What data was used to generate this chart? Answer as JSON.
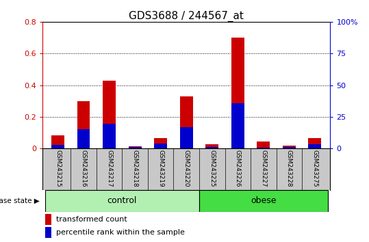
{
  "title": "GDS3688 / 244567_at",
  "samples": [
    "GSM243215",
    "GSM243216",
    "GSM243217",
    "GSM243218",
    "GSM243219",
    "GSM243220",
    "GSM243225",
    "GSM243226",
    "GSM243227",
    "GSM243228",
    "GSM243275"
  ],
  "transformed_count": [
    0.085,
    0.3,
    0.43,
    0.015,
    0.065,
    0.33,
    0.025,
    0.7,
    0.045,
    0.02,
    0.065
  ],
  "percentile_rank_scaled": [
    0.022,
    0.12,
    0.155,
    0.008,
    0.03,
    0.135,
    0.01,
    0.285,
    0.005,
    0.01,
    0.025
  ],
  "groups": [
    {
      "label": "control",
      "start": 0,
      "end": 6,
      "color": "#b2f0b2"
    },
    {
      "label": "obese",
      "start": 6,
      "end": 11,
      "color": "#44dd44"
    }
  ],
  "disease_state_label": "disease state",
  "ylim_left": [
    0,
    0.8
  ],
  "ylim_right": [
    0,
    100
  ],
  "yticks_left": [
    0,
    0.2,
    0.4,
    0.6,
    0.8
  ],
  "yticks_right": [
    0,
    25,
    50,
    75,
    100
  ],
  "ytick_labels_left": [
    "0",
    "0.2",
    "0.4",
    "0.6",
    "0.8"
  ],
  "ytick_labels_right": [
    "0",
    "25",
    "50",
    "75",
    "100%"
  ],
  "bar_color_red": "#CC0000",
  "bar_color_blue": "#0000CC",
  "bar_width": 0.5,
  "background_color": "#ffffff",
  "plot_bg_color": "#ffffff",
  "tick_label_area_color": "#c8c8c8",
  "legend_red_label": "transformed count",
  "legend_blue_label": "percentile rank within the sample",
  "percentile_scale_factor": 125.0
}
